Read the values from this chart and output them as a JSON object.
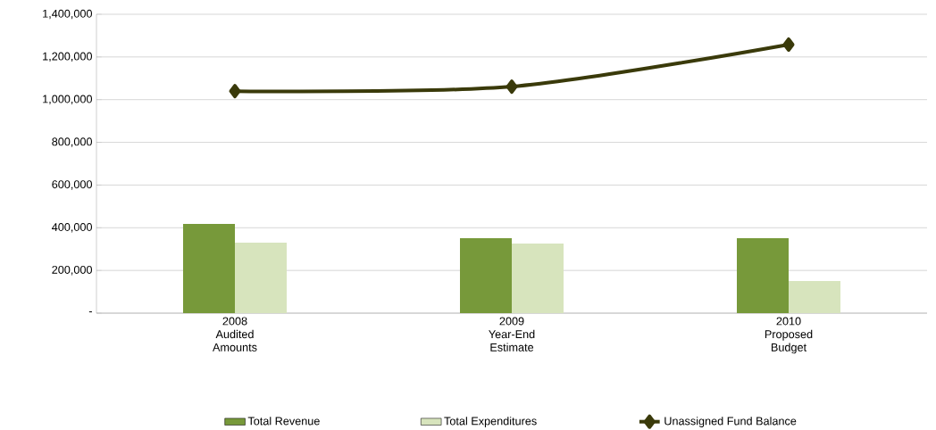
{
  "chart_data": {
    "type": "bar",
    "categories": [
      "2008 Audited Amounts",
      "2009 Year-End Estimate",
      "2010 Proposed Budget"
    ],
    "series": [
      {
        "name": "Total Revenue",
        "color": "#77993a",
        "values": [
          418000,
          351000,
          351000
        ]
      },
      {
        "name": "Total Expenditures",
        "color": "#d7e4bd",
        "values": [
          330000,
          326000,
          150000
        ]
      },
      {
        "name": "Unassigned Fund Balance",
        "type": "line",
        "color": "#3a3a0a",
        "marker": "diamond",
        "values": [
          1040000,
          1061000,
          1258000
        ]
      }
    ],
    "ylim": [
      0,
      1400000
    ],
    "yticks": [
      {
        "value": 0,
        "label": "-"
      },
      {
        "value": 200000,
        "label": "200,000"
      },
      {
        "value": 400000,
        "label": "400,000"
      },
      {
        "value": 600000,
        "label": "600,000"
      },
      {
        "value": 800000,
        "label": "800,000"
      },
      {
        "value": 1000000,
        "label": "1,000,000"
      },
      {
        "value": 1200000,
        "label": "1,200,000"
      },
      {
        "value": 1400000,
        "label": "1,400,000"
      }
    ],
    "grid": "y",
    "legend": "bottom"
  }
}
